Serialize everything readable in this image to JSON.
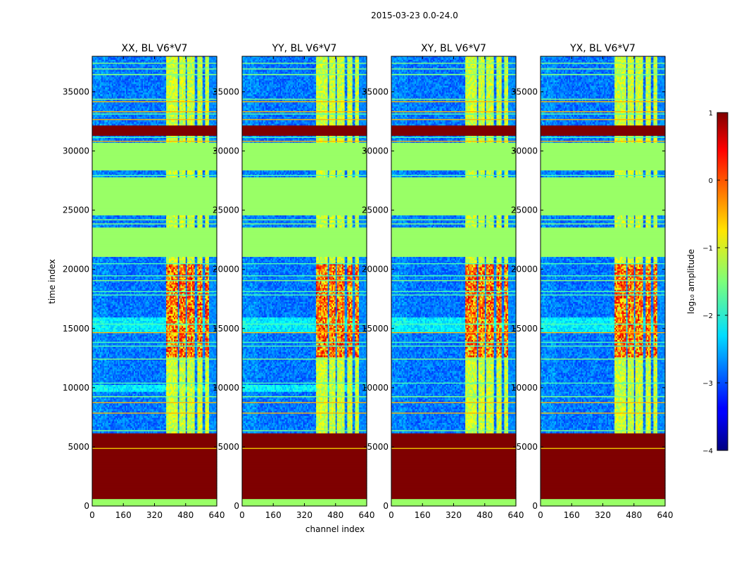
{
  "chart_data": {
    "type": "heatmap",
    "suptitle": "2015-03-23 0.0-24.0",
    "xlabel": "channel index",
    "ylabel": "time index",
    "xlim": [
      0,
      640
    ],
    "ylim": [
      0,
      38000
    ],
    "xticks": [
      0,
      160,
      320,
      480,
      640
    ],
    "yticks": [
      0,
      5000,
      10000,
      15000,
      20000,
      25000,
      30000,
      35000
    ],
    "panels": [
      {
        "title": "XX, BL V6*V7",
        "variant": 0
      },
      {
        "title": "YY, BL V6*V7",
        "variant": 1
      },
      {
        "title": "XY, BL V6*V7",
        "variant": 2
      },
      {
        "title": "YX, BL V6*V7",
        "variant": 3
      }
    ],
    "colorbar": {
      "label": "log₁₀ amplitude",
      "vmin": -4,
      "vmax": 1,
      "ticks": [
        1,
        0,
        -1,
        -2,
        -3,
        -4
      ],
      "colormap": "jet"
    },
    "structure": {
      "constant_time_bands": [
        {
          "from": 0,
          "to": 600,
          "level": "green"
        },
        {
          "from": 600,
          "to": 6100,
          "level": "dark-red"
        },
        {
          "from": 21000,
          "to": 23500,
          "level": "green"
        },
        {
          "from": 24500,
          "to": 27800,
          "level": "green"
        },
        {
          "from": 28300,
          "to": 30700,
          "level": "green"
        },
        {
          "from": 31300,
          "to": 32200,
          "level": "dark-red"
        }
      ],
      "rfi_channel_ranges": [
        [
          380,
          440
        ],
        [
          450,
          480
        ],
        [
          490,
          530
        ],
        [
          540,
          570
        ],
        [
          580,
          600
        ]
      ],
      "masked_channel_range": [
        600,
        640
      ]
    },
    "colors": {
      "dark_red": "#7f0000",
      "green": "#99ff66",
      "blue_base": "#1f3ae0",
      "background": "#ffffff"
    }
  }
}
